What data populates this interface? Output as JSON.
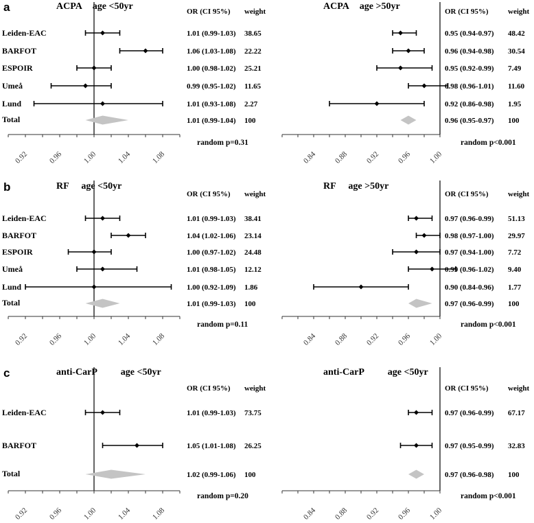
{
  "header_labels": {
    "or_ci": "OR (CI 95%)",
    "weight": "weight"
  },
  "chart_data": [
    {
      "type": "forest",
      "panel_label": "a",
      "marker": "ACPA",
      "age_group": "age <50yr",
      "xlim": [
        0.9,
        1.1
      ],
      "ref_line": 1.0,
      "ticks": [
        "0.92",
        "0.96",
        "1.00",
        "1.04",
        "1.08"
      ],
      "studies": [
        {
          "name": "Leiden-EAC",
          "or": 1.01,
          "lo": 0.99,
          "hi": 1.03,
          "or_ci_text": "1.01 (0.99-1.03)",
          "weight": "38.65"
        },
        {
          "name": "BARFOT",
          "or": 1.06,
          "lo": 1.03,
          "hi": 1.08,
          "or_ci_text": "1.06 (1.03-1.08)",
          "weight": "22.22"
        },
        {
          "name": "ESPOIR",
          "or": 1.0,
          "lo": 0.98,
          "hi": 1.02,
          "or_ci_text": "1.00 (0.98-1.02)",
          "weight": "25.21"
        },
        {
          "name": "Umeå",
          "or": 0.99,
          "lo": 0.95,
          "hi": 1.02,
          "or_ci_text": "0.99 (0.95-1.02)",
          "weight": "11.65"
        },
        {
          "name": "Lund",
          "or": 1.01,
          "lo": 0.93,
          "hi": 1.08,
          "or_ci_text": "1.01 (0.93-1.08)",
          "weight": "2.27"
        }
      ],
      "total": {
        "name": "Total",
        "or": 1.01,
        "lo": 0.99,
        "hi": 1.04,
        "or_ci_text": "1.01 (0.99-1.04)",
        "weight": "100"
      },
      "p_text": "random p=0.31"
    },
    {
      "type": "forest",
      "panel_label": "",
      "marker": "ACPA",
      "age_group": "age >50yr",
      "xlim": [
        0.8,
        1.0
      ],
      "ref_line": 1.0,
      "ticks": [
        "0.84",
        "0.88",
        "0.92",
        "0.96",
        "1.00"
      ],
      "studies": [
        {
          "name": "Leiden-EAC",
          "or": 0.95,
          "lo": 0.94,
          "hi": 0.97,
          "or_ci_text": "0.95 (0.94-0.97)",
          "weight": "48.42"
        },
        {
          "name": "BARFOT",
          "or": 0.96,
          "lo": 0.94,
          "hi": 0.98,
          "or_ci_text": "0.96 (0.94-0.98)",
          "weight": "30.54"
        },
        {
          "name": "ESPOIR",
          "or": 0.95,
          "lo": 0.92,
          "hi": 0.99,
          "or_ci_text": "0.95 (0.92-0.99)",
          "weight": "7.49"
        },
        {
          "name": "Umeå",
          "or": 0.98,
          "lo": 0.96,
          "hi": 1.01,
          "or_ci_text": "0.98 (0.96-1.01)",
          "weight": "11.60"
        },
        {
          "name": "Lund",
          "or": 0.92,
          "lo": 0.86,
          "hi": 0.98,
          "or_ci_text": "0.92 (0.86-0.98)",
          "weight": "1.95"
        }
      ],
      "total": {
        "name": "Total",
        "or": 0.96,
        "lo": 0.95,
        "hi": 0.97,
        "or_ci_text": "0.96 (0.95-0.97)",
        "weight": "100"
      },
      "p_text": "random p<0.001"
    },
    {
      "type": "forest",
      "panel_label": "b",
      "marker": "RF",
      "age_group": "age <50yr",
      "xlim": [
        0.9,
        1.1
      ],
      "ref_line": 1.0,
      "ticks": [
        "0.92",
        "0.96",
        "1.00",
        "1.04",
        "1.08"
      ],
      "studies": [
        {
          "name": "Leiden-EAC",
          "or": 1.01,
          "lo": 0.99,
          "hi": 1.03,
          "or_ci_text": "1.01 (0.99-1.03)",
          "weight": "38.41"
        },
        {
          "name": "BARFOT",
          "or": 1.04,
          "lo": 1.02,
          "hi": 1.06,
          "or_ci_text": "1.04 (1.02-1.06)",
          "weight": "23.14"
        },
        {
          "name": "ESPOIR",
          "or": 1.0,
          "lo": 0.97,
          "hi": 1.02,
          "or_ci_text": "1.00 (0.97-1.02)",
          "weight": "24.48"
        },
        {
          "name": "Umeå",
          "or": 1.01,
          "lo": 0.98,
          "hi": 1.05,
          "or_ci_text": "1.01 (0.98-1.05)",
          "weight": "12.12"
        },
        {
          "name": "Lund",
          "or": 1.0,
          "lo": 0.92,
          "hi": 1.09,
          "or_ci_text": "1.00 (0.92-1.09)",
          "weight": "1.86"
        }
      ],
      "total": {
        "name": "Total",
        "or": 1.01,
        "lo": 0.99,
        "hi": 1.03,
        "or_ci_text": "1.01 (0.99-1.03)",
        "weight": "100"
      },
      "p_text": "random p=0.11"
    },
    {
      "type": "forest",
      "panel_label": "",
      "marker": "RF",
      "age_group": "age >50yr",
      "xlim": [
        0.8,
        1.0
      ],
      "ref_line": 1.0,
      "ticks": [
        "0.84",
        "0.88",
        "0.92",
        "0.96",
        "1.00"
      ],
      "studies": [
        {
          "name": "Leiden-EAC",
          "or": 0.97,
          "lo": 0.96,
          "hi": 0.99,
          "or_ci_text": "0.97 (0.96-0.99)",
          "weight": "51.13"
        },
        {
          "name": "BARFOT",
          "or": 0.98,
          "lo": 0.97,
          "hi": 1.0,
          "or_ci_text": "0.98 (0.97-1.00)",
          "weight": "29.97"
        },
        {
          "name": "ESPOIR",
          "or": 0.97,
          "lo": 0.94,
          "hi": 1.0,
          "or_ci_text": "0.97 (0.94-1.00)",
          "weight": "7.72"
        },
        {
          "name": "Umeå",
          "or": 0.99,
          "lo": 0.96,
          "hi": 1.02,
          "or_ci_text": "0.99 (0.96-1.02)",
          "weight": "9.40"
        },
        {
          "name": "Lund",
          "or": 0.9,
          "lo": 0.84,
          "hi": 0.96,
          "or_ci_text": "0.90 (0.84-0.96)",
          "weight": "1.77"
        }
      ],
      "total": {
        "name": "Total",
        "or": 0.97,
        "lo": 0.96,
        "hi": 0.99,
        "or_ci_text": "0.97 (0.96-0.99)",
        "weight": "100"
      },
      "p_text": "random p<0.001"
    },
    {
      "type": "forest",
      "panel_label": "c",
      "marker": "anti-CarP",
      "age_group": "age <50yr",
      "xlim": [
        0.9,
        1.1
      ],
      "ref_line": 1.0,
      "ticks": [
        "0.92",
        "0.96",
        "1.00",
        "1.04",
        "1.08"
      ],
      "studies": [
        {
          "name": "Leiden-EAC",
          "or": 1.01,
          "lo": 0.99,
          "hi": 1.03,
          "or_ci_text": "1.01 (0.99-1.03)",
          "weight": "73.75"
        },
        {
          "name": "BARFOT",
          "or": 1.05,
          "lo": 1.01,
          "hi": 1.08,
          "or_ci_text": "1.05 (1.01-1.08)",
          "weight": "26.25"
        }
      ],
      "total": {
        "name": "Total",
        "or": 1.02,
        "lo": 0.99,
        "hi": 1.06,
        "or_ci_text": "1.02 (0.99-1.06)",
        "weight": "100"
      },
      "p_text": "random p=0.20"
    },
    {
      "type": "forest",
      "panel_label": "",
      "marker": "anti-CarP",
      "age_group": "age <50yr",
      "xlim": [
        0.8,
        1.0
      ],
      "ref_line": 1.0,
      "ticks": [
        "0.84",
        "0.88",
        "0.92",
        "0.96",
        "1.00"
      ],
      "studies": [
        {
          "name": "Leiden-EAC",
          "or": 0.97,
          "lo": 0.96,
          "hi": 0.99,
          "or_ci_text": "0.97 (0.96-0.99)",
          "weight": "67.17"
        },
        {
          "name": "BARFOT",
          "or": 0.97,
          "lo": 0.95,
          "hi": 0.99,
          "or_ci_text": "0.97 (0.95-0.99)",
          "weight": "32.83"
        }
      ],
      "total": {
        "name": "Total",
        "or": 0.97,
        "lo": 0.96,
        "hi": 0.98,
        "or_ci_text": "0.97 (0.96-0.98)",
        "weight": "100"
      },
      "p_text": "random p<0.001"
    }
  ]
}
